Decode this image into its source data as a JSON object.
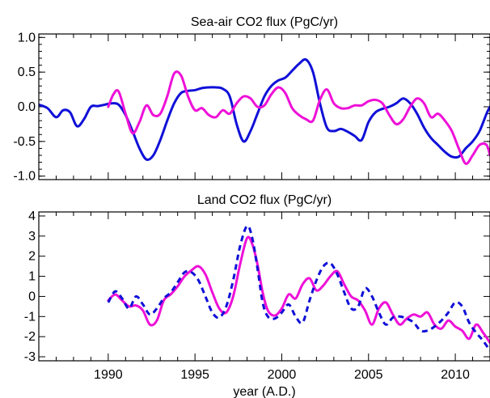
{
  "x_axis": {
    "label": "year (A.D.)",
    "range": [
      1986,
      2012
    ],
    "ticks": [
      1990,
      1995,
      2000,
      2005,
      2010
    ],
    "tick_labels": [
      "1990",
      "1995",
      "2000",
      "2005",
      "2010"
    ]
  },
  "colors": {
    "blue": "#1010d8",
    "magenta": "#ee10d8",
    "frame": "#000000"
  },
  "chart_data": [
    {
      "type": "line",
      "title": "Sea-air CO2 flux (PgC/yr)",
      "xlabel": "",
      "ylabel": "",
      "ylim": [
        -1.05,
        1.05
      ],
      "yticks": [
        1.0,
        0.5,
        0.0,
        -0.5,
        -1.0
      ],
      "ytick_labels": [
        "1.0",
        "0.5",
        "0.0",
        "-0.5",
        "-1.0"
      ],
      "series": [
        {
          "color": "#1010d8",
          "x": [
            1986.0,
            1986.5,
            1987.0,
            1987.4,
            1987.8,
            1988.2,
            1988.6,
            1989.0,
            1989.4,
            1989.8,
            1990.2,
            1990.6,
            1991.0,
            1991.4,
            1991.8,
            1992.2,
            1992.6,
            1993.0,
            1993.4,
            1993.8,
            1994.2,
            1994.6,
            1995.0,
            1995.4,
            1995.8,
            1996.2,
            1996.6,
            1997.0,
            1997.4,
            1997.8,
            1998.2,
            1998.6,
            1999.0,
            1999.4,
            1999.8,
            2000.2,
            2000.6,
            2001.0,
            2001.4,
            2001.8,
            2002.2,
            2002.6,
            2003.0,
            2003.4,
            2003.8,
            2004.2,
            2004.6,
            2005.0,
            2005.4,
            2005.8,
            2006.2,
            2006.6,
            2007.0,
            2007.4,
            2007.8,
            2008.2,
            2008.6,
            2009.0,
            2009.4,
            2009.8,
            2010.2,
            2010.6,
            2011.0,
            2011.4,
            2011.8,
            2012.0
          ],
          "y": [
            0.03,
            -0.02,
            -0.15,
            -0.05,
            -0.08,
            -0.28,
            -0.18,
            0.0,
            0.01,
            0.03,
            0.05,
            0.03,
            -0.12,
            -0.35,
            -0.6,
            -0.76,
            -0.7,
            -0.48,
            -0.2,
            0.05,
            0.2,
            0.23,
            0.24,
            0.27,
            0.28,
            0.28,
            0.26,
            0.15,
            -0.25,
            -0.5,
            -0.35,
            -0.1,
            0.15,
            0.3,
            0.38,
            0.42,
            0.52,
            0.62,
            0.68,
            0.5,
            0.05,
            -0.3,
            -0.35,
            -0.32,
            -0.36,
            -0.42,
            -0.48,
            -0.22,
            -0.08,
            -0.03,
            0.0,
            0.05,
            0.12,
            0.05,
            -0.1,
            -0.3,
            -0.45,
            -0.55,
            -0.65,
            -0.72,
            -0.72,
            -0.6,
            -0.5,
            -0.35,
            -0.1,
            0.0
          ]
        },
        {
          "color": "#ee10d8",
          "x": [
            1990.0,
            1990.3,
            1990.6,
            1991.0,
            1991.4,
            1991.8,
            1992.2,
            1992.6,
            1993.0,
            1993.4,
            1993.8,
            1994.2,
            1994.6,
            1995.0,
            1995.4,
            1995.8,
            1996.2,
            1996.6,
            1997.0,
            1997.4,
            1997.8,
            1998.2,
            1998.6,
            1999.0,
            1999.4,
            1999.8,
            2000.2,
            2000.6,
            2001.0,
            2001.4,
            2001.8,
            2002.2,
            2002.6,
            2003.0,
            2003.4,
            2003.8,
            2004.2,
            2004.6,
            2005.0,
            2005.4,
            2005.8,
            2006.2,
            2006.6,
            2007.0,
            2007.4,
            2007.8,
            2008.2,
            2008.6,
            2009.0,
            2009.4,
            2009.8,
            2010.2,
            2010.6,
            2011.0,
            2011.4,
            2011.8,
            2012.0
          ],
          "y": [
            0.0,
            0.18,
            0.22,
            -0.1,
            -0.38,
            -0.22,
            0.02,
            -0.12,
            -0.1,
            0.15,
            0.48,
            0.45,
            0.15,
            -0.05,
            -0.02,
            -0.12,
            -0.15,
            -0.05,
            -0.1,
            0.05,
            0.15,
            0.12,
            0.0,
            0.02,
            0.18,
            0.28,
            0.2,
            -0.02,
            -0.12,
            -0.18,
            -0.2,
            0.1,
            0.25,
            0.05,
            -0.02,
            -0.02,
            0.02,
            0.02,
            0.08,
            0.1,
            0.05,
            -0.12,
            -0.25,
            -0.18,
            0.0,
            0.12,
            0.05,
            -0.15,
            -0.1,
            -0.2,
            -0.35,
            -0.6,
            -0.82,
            -0.7,
            -0.55,
            -0.55,
            -0.7
          ]
        }
      ]
    },
    {
      "type": "line",
      "title": "Land CO2 flux (PgC/yr)",
      "xlabel": "year (A.D.)",
      "ylabel": "",
      "ylim": [
        -3.2,
        4.2
      ],
      "yticks": [
        4,
        3,
        2,
        1,
        0,
        -1,
        -2,
        -3
      ],
      "ytick_labels": [
        "4",
        "3",
        "2",
        "1",
        "0",
        "-1",
        "-2",
        "-3"
      ],
      "series": [
        {
          "color": "#ee10d8",
          "x": [
            1990.0,
            1990.4,
            1990.8,
            1991.2,
            1991.6,
            1992.0,
            1992.4,
            1992.8,
            1993.2,
            1993.6,
            1994.0,
            1994.4,
            1994.8,
            1995.2,
            1995.6,
            1996.0,
            1996.4,
            1996.8,
            1997.2,
            1997.6,
            1998.0,
            1998.3,
            1998.6,
            1998.9,
            1999.2,
            1999.6,
            2000.0,
            2000.4,
            2000.8,
            2001.2,
            2001.6,
            2002.0,
            2002.4,
            2002.8,
            2003.2,
            2003.6,
            2004.0,
            2004.4,
            2004.8,
            2005.2,
            2005.6,
            2006.0,
            2006.4,
            2006.8,
            2007.2,
            2007.6,
            2008.0,
            2008.4,
            2008.8,
            2009.2,
            2009.6,
            2010.0,
            2010.4,
            2010.8,
            2011.2,
            2011.6,
            2012.0
          ],
          "y": [
            -0.2,
            0.1,
            -0.2,
            -0.5,
            -0.45,
            -0.7,
            -1.4,
            -1.2,
            -0.2,
            0.1,
            0.5,
            1.0,
            1.3,
            1.5,
            1.1,
            0.2,
            -0.6,
            -0.8,
            0.0,
            1.6,
            2.9,
            2.6,
            1.6,
            0.2,
            -0.7,
            -0.95,
            -0.6,
            0.1,
            -0.1,
            0.6,
            0.9,
            0.3,
            0.55,
            1.0,
            1.25,
            0.6,
            0.0,
            -0.2,
            -0.7,
            -1.4,
            -0.6,
            -0.3,
            -0.9,
            -1.4,
            -1.1,
            -0.9,
            -1.0,
            -0.8,
            -1.4,
            -1.6,
            -1.2,
            -1.5,
            -1.7,
            -2.1,
            -1.4,
            -1.8,
            -2.3
          ]
        },
        {
          "color": "#1010d8",
          "dashed": true,
          "x": [
            1990.0,
            1990.4,
            1990.8,
            1991.2,
            1991.6,
            1992.0,
            1992.4,
            1992.8,
            1993.2,
            1993.6,
            1994.0,
            1994.4,
            1994.8,
            1995.2,
            1995.6,
            1996.0,
            1996.4,
            1996.8,
            1997.2,
            1997.6,
            1998.0,
            1998.3,
            1998.6,
            1998.9,
            1999.2,
            1999.6,
            2000.0,
            2000.4,
            2000.8,
            2001.2,
            2001.6,
            2002.0,
            2002.4,
            2002.8,
            2003.2,
            2003.6,
            2004.0,
            2004.4,
            2004.8,
            2005.2,
            2005.6,
            2006.0,
            2006.4,
            2006.8,
            2007.2,
            2007.6,
            2008.0,
            2008.4,
            2008.8,
            2009.2,
            2009.6,
            2010.0,
            2010.4,
            2010.8,
            2011.2,
            2011.6,
            2012.0
          ],
          "y": [
            -0.3,
            0.25,
            -0.1,
            -0.6,
            0.0,
            -0.4,
            -0.9,
            -0.6,
            -0.1,
            0.2,
            0.7,
            1.2,
            1.2,
            0.8,
            0.0,
            -0.8,
            -1.05,
            -0.5,
            0.8,
            2.5,
            3.5,
            2.9,
            1.4,
            -0.3,
            -1.0,
            -1.1,
            -0.8,
            -0.4,
            -1.0,
            -1.3,
            -0.2,
            0.8,
            1.5,
            1.65,
            1.1,
            0.2,
            -0.6,
            -0.5,
            0.4,
            0.0,
            -0.8,
            -1.4,
            -1.05,
            -1.0,
            -1.1,
            -1.3,
            -1.7,
            -1.7,
            -1.5,
            -1.2,
            -0.8,
            -0.3,
            -0.5,
            -1.3,
            -1.8,
            -2.2,
            -2.7
          ]
        }
      ]
    }
  ]
}
